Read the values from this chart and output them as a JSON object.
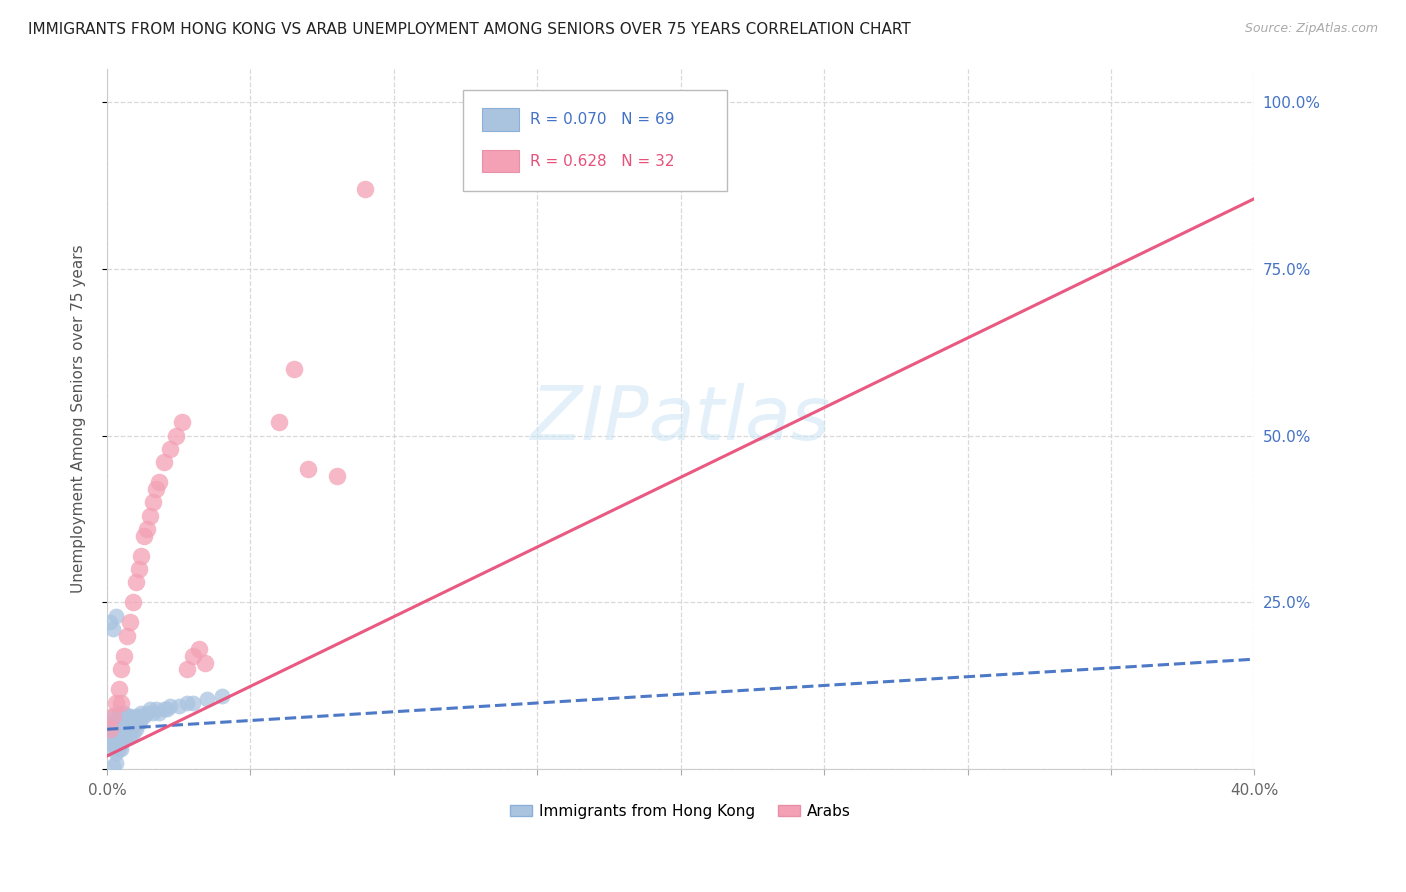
{
  "title": "IMMIGRANTS FROM HONG KONG VS ARAB UNEMPLOYMENT AMONG SENIORS OVER 75 YEARS CORRELATION CHART",
  "source": "Source: ZipAtlas.com",
  "ylabel": "Unemployment Among Seniors over 75 years",
  "xlim": [
    0.0,
    0.4
  ],
  "ylim": [
    0.0,
    1.05
  ],
  "y_ticks": [
    0.0,
    0.25,
    0.5,
    0.75,
    1.0
  ],
  "y_tick_labels_right": [
    "",
    "25.0%",
    "50.0%",
    "75.0%",
    "100.0%"
  ],
  "x_ticks": [
    0.0,
    0.05,
    0.1,
    0.15,
    0.2,
    0.25,
    0.3,
    0.35,
    0.4
  ],
  "hk_R": 0.07,
  "hk_N": 69,
  "arab_R": 0.628,
  "arab_N": 32,
  "hk_color": "#aac4e0",
  "hk_line_color": "#4472c4",
  "arab_color": "#f4a0b5",
  "arab_line_color": "#e8507a",
  "hk_x": [
    0.001,
    0.001,
    0.001,
    0.002,
    0.002,
    0.002,
    0.002,
    0.002,
    0.003,
    0.003,
    0.003,
    0.003,
    0.003,
    0.003,
    0.004,
    0.004,
    0.004,
    0.004,
    0.004,
    0.004,
    0.004,
    0.005,
    0.005,
    0.005,
    0.005,
    0.005,
    0.005,
    0.006,
    0.006,
    0.006,
    0.006,
    0.006,
    0.007,
    0.007,
    0.007,
    0.007,
    0.008,
    0.008,
    0.008,
    0.008,
    0.009,
    0.009,
    0.009,
    0.01,
    0.01,
    0.01,
    0.011,
    0.011,
    0.012,
    0.012,
    0.013,
    0.014,
    0.015,
    0.016,
    0.017,
    0.018,
    0.02,
    0.021,
    0.022,
    0.025,
    0.028,
    0.03,
    0.035,
    0.04,
    0.001,
    0.002,
    0.003,
    0.002,
    0.003
  ],
  "hk_y": [
    0.055,
    0.04,
    0.07,
    0.04,
    0.05,
    0.06,
    0.03,
    0.08,
    0.045,
    0.055,
    0.065,
    0.035,
    0.075,
    0.025,
    0.05,
    0.06,
    0.04,
    0.07,
    0.03,
    0.08,
    0.085,
    0.05,
    0.06,
    0.04,
    0.07,
    0.08,
    0.03,
    0.055,
    0.065,
    0.045,
    0.075,
    0.085,
    0.06,
    0.07,
    0.05,
    0.08,
    0.06,
    0.07,
    0.05,
    0.08,
    0.065,
    0.075,
    0.055,
    0.07,
    0.06,
    0.08,
    0.07,
    0.08,
    0.075,
    0.085,
    0.08,
    0.085,
    0.09,
    0.085,
    0.09,
    0.085,
    0.09,
    0.09,
    0.095,
    0.095,
    0.1,
    0.1,
    0.105,
    0.11,
    0.22,
    0.21,
    0.23,
    0.005,
    0.01
  ],
  "arab_x": [
    0.001,
    0.002,
    0.003,
    0.004,
    0.005,
    0.005,
    0.006,
    0.007,
    0.008,
    0.009,
    0.01,
    0.011,
    0.012,
    0.013,
    0.014,
    0.015,
    0.016,
    0.017,
    0.018,
    0.02,
    0.022,
    0.024,
    0.026,
    0.028,
    0.03,
    0.032,
    0.034,
    0.06,
    0.065,
    0.07,
    0.08,
    0.09
  ],
  "arab_y": [
    0.06,
    0.08,
    0.1,
    0.12,
    0.15,
    0.1,
    0.17,
    0.2,
    0.22,
    0.25,
    0.28,
    0.3,
    0.32,
    0.35,
    0.36,
    0.38,
    0.4,
    0.42,
    0.43,
    0.46,
    0.48,
    0.5,
    0.52,
    0.15,
    0.17,
    0.18,
    0.16,
    0.52,
    0.6,
    0.45,
    0.44,
    0.87
  ],
  "hk_line_x": [
    0.0,
    0.4
  ],
  "hk_line_y": [
    0.06,
    0.165
  ],
  "arab_line_x": [
    0.0,
    0.4
  ],
  "arab_line_y": [
    0.02,
    0.855
  ]
}
